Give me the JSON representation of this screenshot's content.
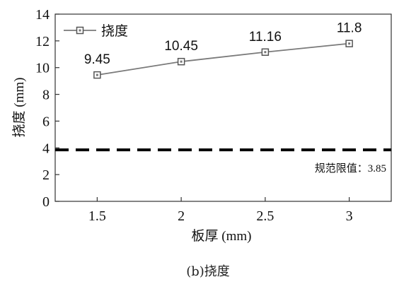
{
  "caption": "(b)挠度",
  "chart_data": {
    "type": "line",
    "x": [
      1.5,
      2,
      2.5,
      3
    ],
    "series": [
      {
        "name": "挠度",
        "values": [
          9.45,
          10.45,
          11.16,
          11.8
        ],
        "color": "#7a7a7a",
        "marker": "square"
      }
    ],
    "data_labels": [
      "9.45",
      "10.45",
      "11.16",
      "11.8"
    ],
    "xlabel": "板厚 (mm)",
    "ylabel": "挠度 (mm)",
    "xlim": [
      1.25,
      3.25
    ],
    "ylim": [
      0,
      14
    ],
    "xticks": [
      "1.5",
      "2",
      "2.5",
      "3"
    ],
    "yticks": [
      "0",
      "2",
      "4",
      "6",
      "8",
      "10",
      "12",
      "14"
    ],
    "reference_line": {
      "value": 3.85,
      "label": "规范限值：3.85",
      "style": "dashed",
      "color": "#000000"
    },
    "legend_position": "top-left",
    "grid": false
  }
}
